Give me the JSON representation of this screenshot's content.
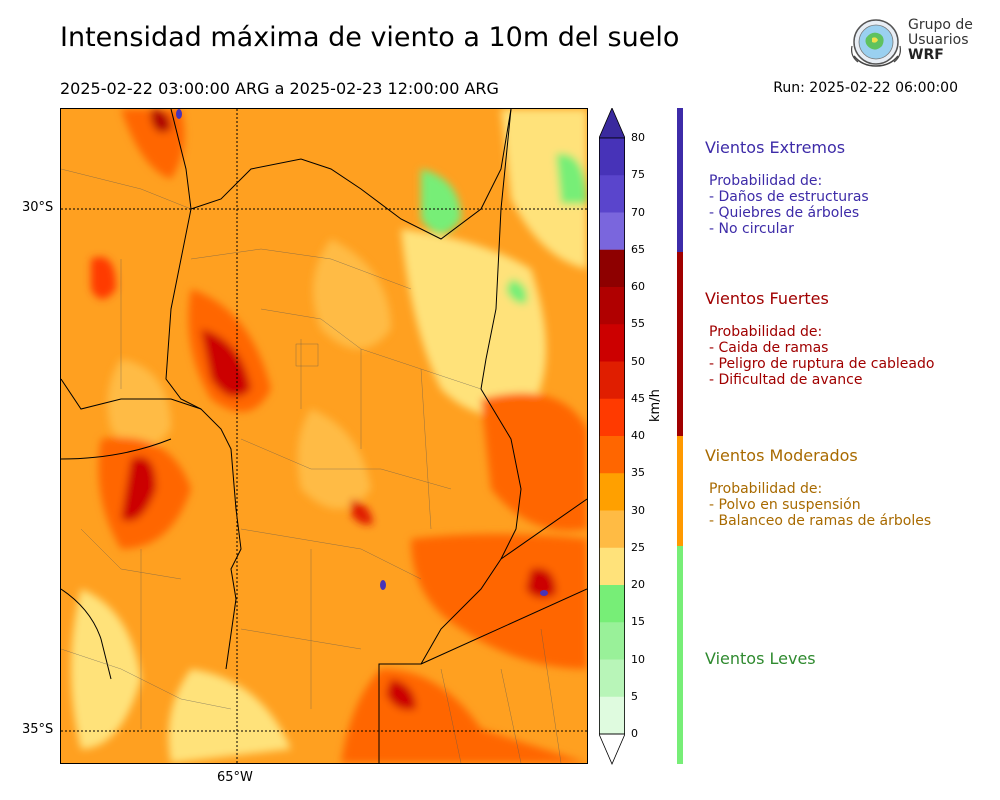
{
  "title": "Intensidad máxima de viento a 10m del suelo",
  "period": "2025-02-22 03:00:00 ARG  a  2025-02-23 12:00:00 ARG",
  "run": "Run: 2025-02-22 06:00:00",
  "logo": {
    "line1": "Grupo de",
    "line2": "Usuarios",
    "line3": "WRF"
  },
  "map": {
    "lat_labels": [
      "30°S",
      "35°S"
    ],
    "lon_labels": [
      "65°W"
    ]
  },
  "colorbar": {
    "unit": "km/h",
    "ticks": [
      "80",
      "75",
      "70",
      "65",
      "60",
      "55",
      "50",
      "45",
      "40",
      "35",
      "30",
      "25",
      "20",
      "15",
      "10",
      "5",
      "0"
    ],
    "colors": {
      "80": "#3a2a9e",
      "75": "#4733b8",
      "70": "#5a45cc",
      "65": "#7a66dd",
      "60": "#8e0000",
      "55": "#b00000",
      "50": "#cc0000",
      "45": "#e01e00",
      "40": "#ff3a00",
      "35": "#ff6600",
      "30": "#ffa000",
      "25": "#ffbb44",
      "20": "#ffe27a",
      "15": "#77ee77",
      "10": "#99f199",
      "5": "#b8f5b8",
      "0": "#dffbdf"
    }
  },
  "categories": [
    {
      "title": "Vientos Extremos",
      "color": "#3d2ba8",
      "heading": "Probabilidad de:",
      "items": [
        "- Daños de estructuras",
        "- Quiebres de árboles",
        "- No circular"
      ]
    },
    {
      "title": "Vientos Fuertes",
      "color": "#a00000",
      "heading": "Probabilidad de:",
      "items": [
        "- Caida de ramas",
        "- Peligro de ruptura de cableado",
        "- Dificultad de avance"
      ]
    },
    {
      "title": "Vientos Moderados",
      "color": "#a86a00",
      "heading": "Probabilidad de:",
      "items": [
        "- Polvo en suspensión",
        "- Balanceo de ramas de árboles"
      ]
    },
    {
      "title": "Vientos Leves",
      "color": "#2f8a2f",
      "heading": "",
      "items": []
    }
  ]
}
